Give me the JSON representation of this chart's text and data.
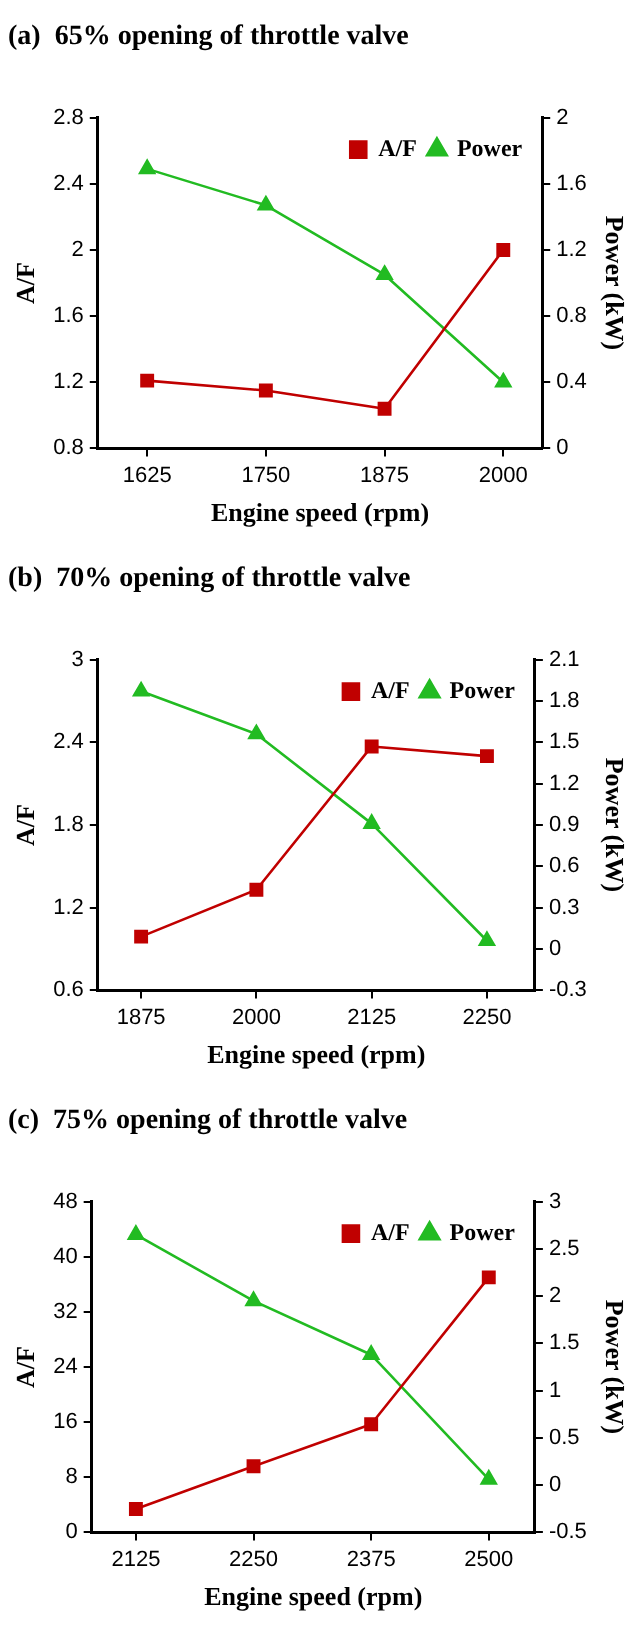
{
  "chart_data": [
    {
      "type": "line",
      "title": "(a)  65% opening of throttle valve",
      "xlabel": "Engine speed (rpm)",
      "ylabel": "A/F",
      "y2label": "Power (kW)",
      "x": [
        1625,
        1750,
        1875,
        2000
      ],
      "xlim": [
        1573,
        2041
      ],
      "xticks": [
        1625,
        1750,
        1875,
        2000
      ],
      "ylim": [
        0.8,
        2.8
      ],
      "yticks": [
        0.8,
        1.2,
        1.6,
        2,
        2.4,
        2.8
      ],
      "y2lim": [
        0,
        2
      ],
      "y2ticks": [
        0,
        0.4,
        0.8,
        1.2,
        1.6,
        2
      ],
      "grid": false,
      "legend": "top right",
      "series": [
        {
          "name": "A/F",
          "color": "#c00000",
          "marker": "square",
          "values": [
            1.21,
            1.15,
            1.04,
            2.0
          ]
        },
        {
          "name": "Power",
          "color": "#22bb22",
          "marker": "triangle",
          "axis": "y2",
          "values": [
            1.69,
            1.47,
            1.05,
            0.4
          ]
        }
      ]
    },
    {
      "type": "line",
      "title": "(b)  70% opening of throttle valve",
      "xlabel": "Engine speed (rpm)",
      "ylabel": "A/F",
      "y2label": "Power (kW)",
      "x": [
        1875,
        2000,
        2125,
        2250
      ],
      "xlim": [
        1828,
        2302
      ],
      "xticks": [
        1875,
        2000,
        2125,
        2250
      ],
      "ylim": [
        0.6,
        3
      ],
      "yticks": [
        0.6,
        1.2,
        1.8,
        2.4,
        3
      ],
      "y2lim": [
        -0.3,
        2.1
      ],
      "y2ticks": [
        -0.3,
        0,
        0.3,
        0.6,
        0.9,
        1.2,
        1.5,
        1.8,
        2.1
      ],
      "grid": false,
      "legend": "top right",
      "series": [
        {
          "name": "A/F",
          "color": "#c00000",
          "marker": "square",
          "values": [
            0.99,
            1.33,
            2.37,
            2.3
          ]
        },
        {
          "name": "Power",
          "color": "#22bb22",
          "marker": "triangle",
          "axis": "y2",
          "values": [
            1.87,
            1.56,
            0.91,
            0.06
          ]
        }
      ]
    },
    {
      "type": "line",
      "title": "(c)  75% opening of throttle valve",
      "xlabel": "Engine speed (rpm)",
      "ylabel": "A/F",
      "y2label": "Power (kW)",
      "x": [
        2125,
        2250,
        2375,
        2500
      ],
      "xlim": [
        2078,
        2549
      ],
      "xticks": [
        2125,
        2250,
        2375,
        2500
      ],
      "ylim": [
        0,
        48
      ],
      "yticks": [
        0,
        8,
        16,
        24,
        32,
        40,
        48
      ],
      "y2lim": [
        -0.5,
        3
      ],
      "y2ticks": [
        -0.5,
        0,
        0.5,
        1,
        1.5,
        2,
        2.5,
        3
      ],
      "grid": false,
      "legend": "top right",
      "series": [
        {
          "name": "A/F",
          "color": "#c00000",
          "marker": "square",
          "values": [
            3.4,
            9.6,
            15.7,
            37.0
          ]
        },
        {
          "name": "Power",
          "color": "#22bb22",
          "marker": "triangle",
          "axis": "y2",
          "values": [
            2.65,
            1.95,
            1.38,
            0.06
          ]
        }
      ]
    }
  ]
}
